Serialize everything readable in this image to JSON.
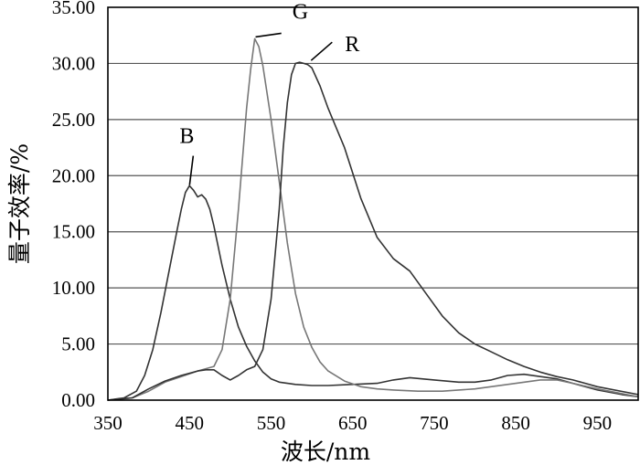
{
  "chart_data": {
    "type": "line",
    "xlabel": "波长/nm",
    "ylabel": "量子效率/%",
    "xlim": [
      350,
      1000
    ],
    "ylim": [
      0,
      35
    ],
    "xticks": [
      "350",
      "450",
      "550",
      "650",
      "750",
      "850",
      "950"
    ],
    "yticks": [
      "0.00",
      "5.00",
      "10.00",
      "15.00",
      "20.00",
      "25.00",
      "30.00",
      "35.00"
    ],
    "grid": "horizontal",
    "colors": {
      "B": "#333333",
      "G": "#777777",
      "R": "#333333"
    },
    "series": [
      {
        "name": "B",
        "label_at": [
          449,
          19
        ],
        "x": [
          350,
          370,
          385,
          395,
          405,
          415,
          425,
          435,
          440,
          445,
          450,
          455,
          460,
          465,
          470,
          475,
          480,
          490,
          500,
          510,
          520,
          530,
          540,
          550,
          560,
          570,
          580,
          600,
          620,
          650,
          680,
          700,
          720,
          750,
          780,
          800,
          820,
          840,
          860,
          880,
          900,
          920,
          950,
          980,
          1000
        ],
        "y": [
          0,
          0.2,
          0.8,
          2.2,
          4.5,
          7.8,
          11.5,
          15.2,
          17.0,
          18.5,
          19.1,
          18.7,
          18.1,
          18.3,
          17.9,
          17.0,
          15.5,
          12.0,
          9.0,
          6.5,
          4.8,
          3.5,
          2.5,
          1.9,
          1.6,
          1.5,
          1.4,
          1.3,
          1.3,
          1.4,
          1.5,
          1.8,
          2.0,
          1.8,
          1.6,
          1.6,
          1.8,
          2.2,
          2.3,
          2.1,
          1.9,
          1.5,
          0.9,
          0.5,
          0.3
        ]
      },
      {
        "name": "G",
        "label_at": [
          529,
          32.2
        ],
        "x": [
          350,
          380,
          400,
          420,
          440,
          460,
          480,
          490,
          500,
          510,
          520,
          525,
          530,
          535,
          540,
          550,
          560,
          570,
          580,
          590,
          600,
          610,
          620,
          640,
          660,
          680,
          700,
          730,
          760,
          800,
          840,
          880,
          900,
          920,
          950,
          1000
        ],
        "y": [
          0,
          0.2,
          0.8,
          1.6,
          2.1,
          2.6,
          3.0,
          4.5,
          9.0,
          17.0,
          26.0,
          29.5,
          32.2,
          31.5,
          29.8,
          25.0,
          19.5,
          14.0,
          9.5,
          6.5,
          4.7,
          3.4,
          2.6,
          1.7,
          1.2,
          1.0,
          0.9,
          0.8,
          0.8,
          1.0,
          1.4,
          1.8,
          1.8,
          1.5,
          1.0,
          0.3
        ]
      },
      {
        "name": "R",
        "label_at": [
          598,
          30.1
        ],
        "x": [
          350,
          380,
          400,
          420,
          440,
          460,
          470,
          480,
          490,
          500,
          510,
          520,
          530,
          540,
          550,
          560,
          565,
          570,
          575,
          580,
          585,
          590,
          595,
          600,
          610,
          620,
          640,
          660,
          680,
          700,
          720,
          740,
          760,
          780,
          800,
          820,
          840,
          860,
          880,
          900,
          920,
          950,
          1000
        ],
        "y": [
          0,
          0.2,
          1.0,
          1.7,
          2.2,
          2.6,
          2.7,
          2.7,
          2.2,
          1.8,
          2.2,
          2.7,
          3.0,
          4.5,
          9.0,
          17.0,
          22.5,
          26.5,
          29.0,
          30.0,
          30.1,
          30.0,
          29.9,
          29.6,
          28.0,
          26.0,
          22.5,
          18.0,
          14.5,
          12.6,
          11.5,
          9.5,
          7.5,
          6.0,
          5.0,
          4.3,
          3.6,
          3.0,
          2.5,
          2.1,
          1.8,
          1.2,
          0.5
        ]
      }
    ]
  }
}
